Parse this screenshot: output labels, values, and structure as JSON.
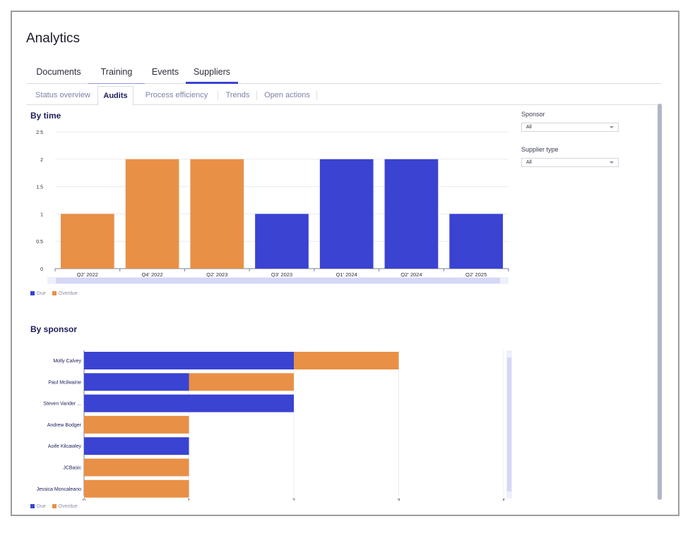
{
  "page": {
    "title": "Analytics"
  },
  "main_tabs": [
    {
      "label": "Documents"
    },
    {
      "label": "Training"
    },
    {
      "label": "Events"
    },
    {
      "label": "Suppliers"
    }
  ],
  "sub_tabs": [
    {
      "label": "Status overview"
    },
    {
      "label": "Audits"
    },
    {
      "label": "Process efficiency"
    },
    {
      "label": "Trends"
    },
    {
      "label": "Open actions"
    }
  ],
  "filters": {
    "sponsor": {
      "label": "Sponsor",
      "value": "All"
    },
    "supplier_type": {
      "label": "Supplier type",
      "value": "All"
    }
  },
  "colors": {
    "due": "#3a43d2",
    "overdue": "#e89046",
    "accent": "#3a43d2"
  },
  "legend": {
    "due": "Due",
    "overdue": "Overdue"
  },
  "chart_data": [
    {
      "type": "bar",
      "title": "By time",
      "categories": [
        "Q2' 2022",
        "Q4' 2022",
        "Q2' 2023",
        "Q3' 2023",
        "Q1' 2024",
        "Q2' 2024",
        "Q2' 2025"
      ],
      "series": [
        {
          "name": "Due",
          "values": [
            0,
            0,
            0,
            1,
            2,
            2,
            1
          ]
        },
        {
          "name": "Overdue",
          "values": [
            1,
            2,
            2,
            0,
            0,
            0,
            0
          ]
        }
      ],
      "yticks": [
        "0",
        "0.5",
        "1",
        "1.5",
        "2",
        "2.5"
      ],
      "ylim": [
        0,
        2.5
      ],
      "grid": true,
      "legend_position": "bottom-left"
    },
    {
      "type": "bar",
      "orientation": "horizontal",
      "title": "By sponsor",
      "categories": [
        "Molly Calvey",
        "Paul Mcilwaine",
        "Steven Vander ...",
        "Andrew Bodger",
        "Aoife Kilcawley",
        "JCBasic",
        "Jessica Moncaleano"
      ],
      "series": [
        {
          "name": "Due",
          "values": [
            2,
            1,
            2,
            0,
            1,
            0,
            0
          ]
        },
        {
          "name": "Overdue",
          "values": [
            1,
            1,
            0,
            1,
            0,
            1,
            1
          ]
        }
      ],
      "xticks": [
        "0",
        "1",
        "2",
        "3",
        "4"
      ],
      "xlim": [
        0,
        4
      ],
      "grid": true,
      "legend_position": "bottom-left"
    }
  ]
}
